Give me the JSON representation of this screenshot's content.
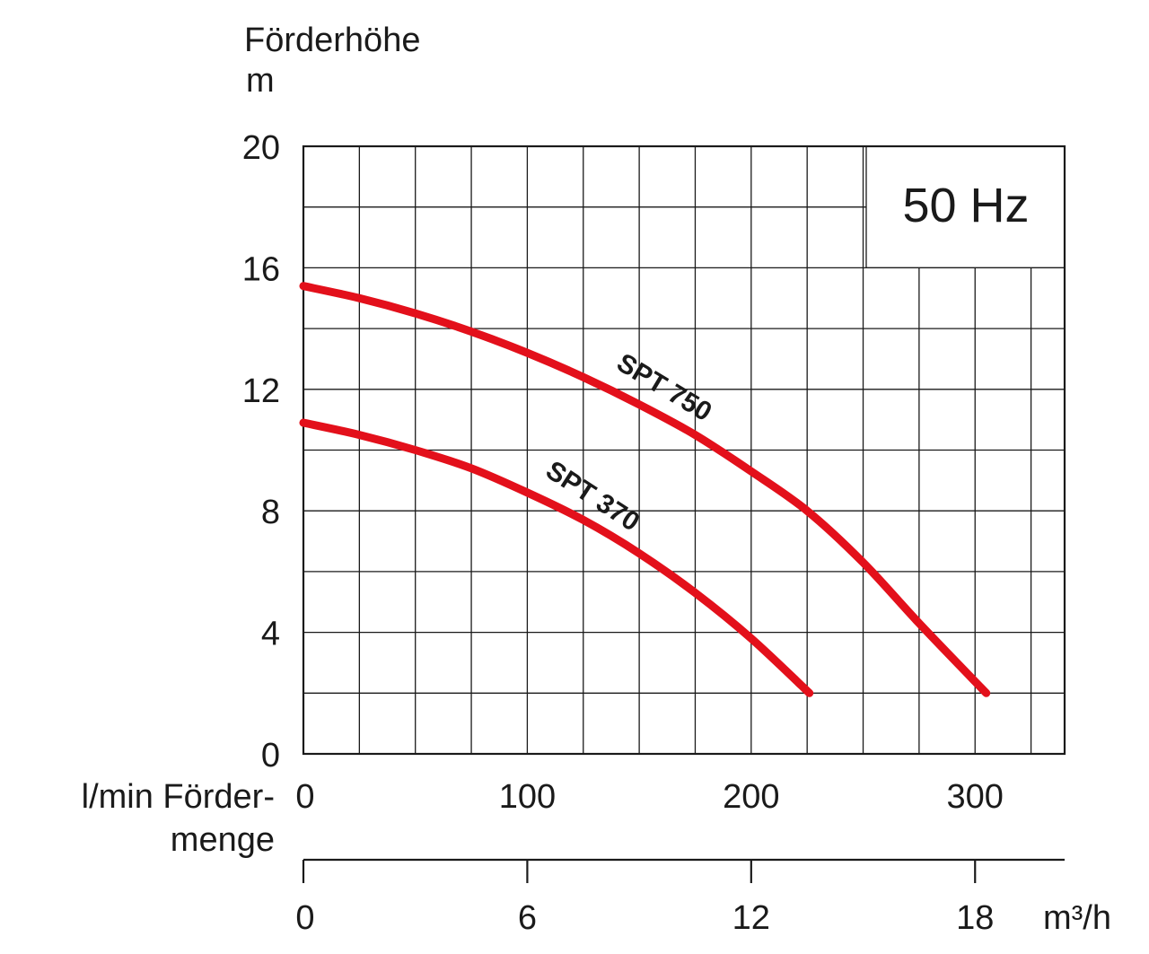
{
  "chart_data": {
    "type": "line",
    "frequency_label": "50 Hz",
    "ylabel": "Förderhöhe",
    "yunit": "m",
    "ylim": [
      0,
      20
    ],
    "yticks": [
      0,
      4,
      8,
      12,
      16,
      20
    ],
    "x_primary": {
      "unit": "l/min",
      "label": "Förder-\nmenge",
      "label_line1": "l/min Förder-",
      "label_line2": "menge",
      "lim": [
        0,
        340
      ],
      "ticks": [
        0,
        100,
        200,
        300
      ]
    },
    "x_secondary": {
      "unit": "m³/h",
      "ticks": [
        0,
        6,
        12,
        18
      ]
    },
    "grid": true,
    "series": [
      {
        "name": "SPT 750",
        "color": "#e3101b",
        "x": [
          0,
          25,
          50,
          75,
          100,
          125,
          150,
          175,
          200,
          225,
          250,
          275,
          305
        ],
        "y": [
          15.4,
          15.0,
          14.5,
          13.9,
          13.2,
          12.4,
          11.5,
          10.5,
          9.3,
          8.0,
          6.3,
          4.3,
          2.0
        ]
      },
      {
        "name": "SPT 370",
        "color": "#e3101b",
        "x": [
          0,
          25,
          50,
          75,
          100,
          125,
          150,
          175,
          200,
          226
        ],
        "y": [
          10.9,
          10.5,
          10.0,
          9.4,
          8.6,
          7.7,
          6.6,
          5.3,
          3.8,
          2.0
        ]
      }
    ]
  }
}
